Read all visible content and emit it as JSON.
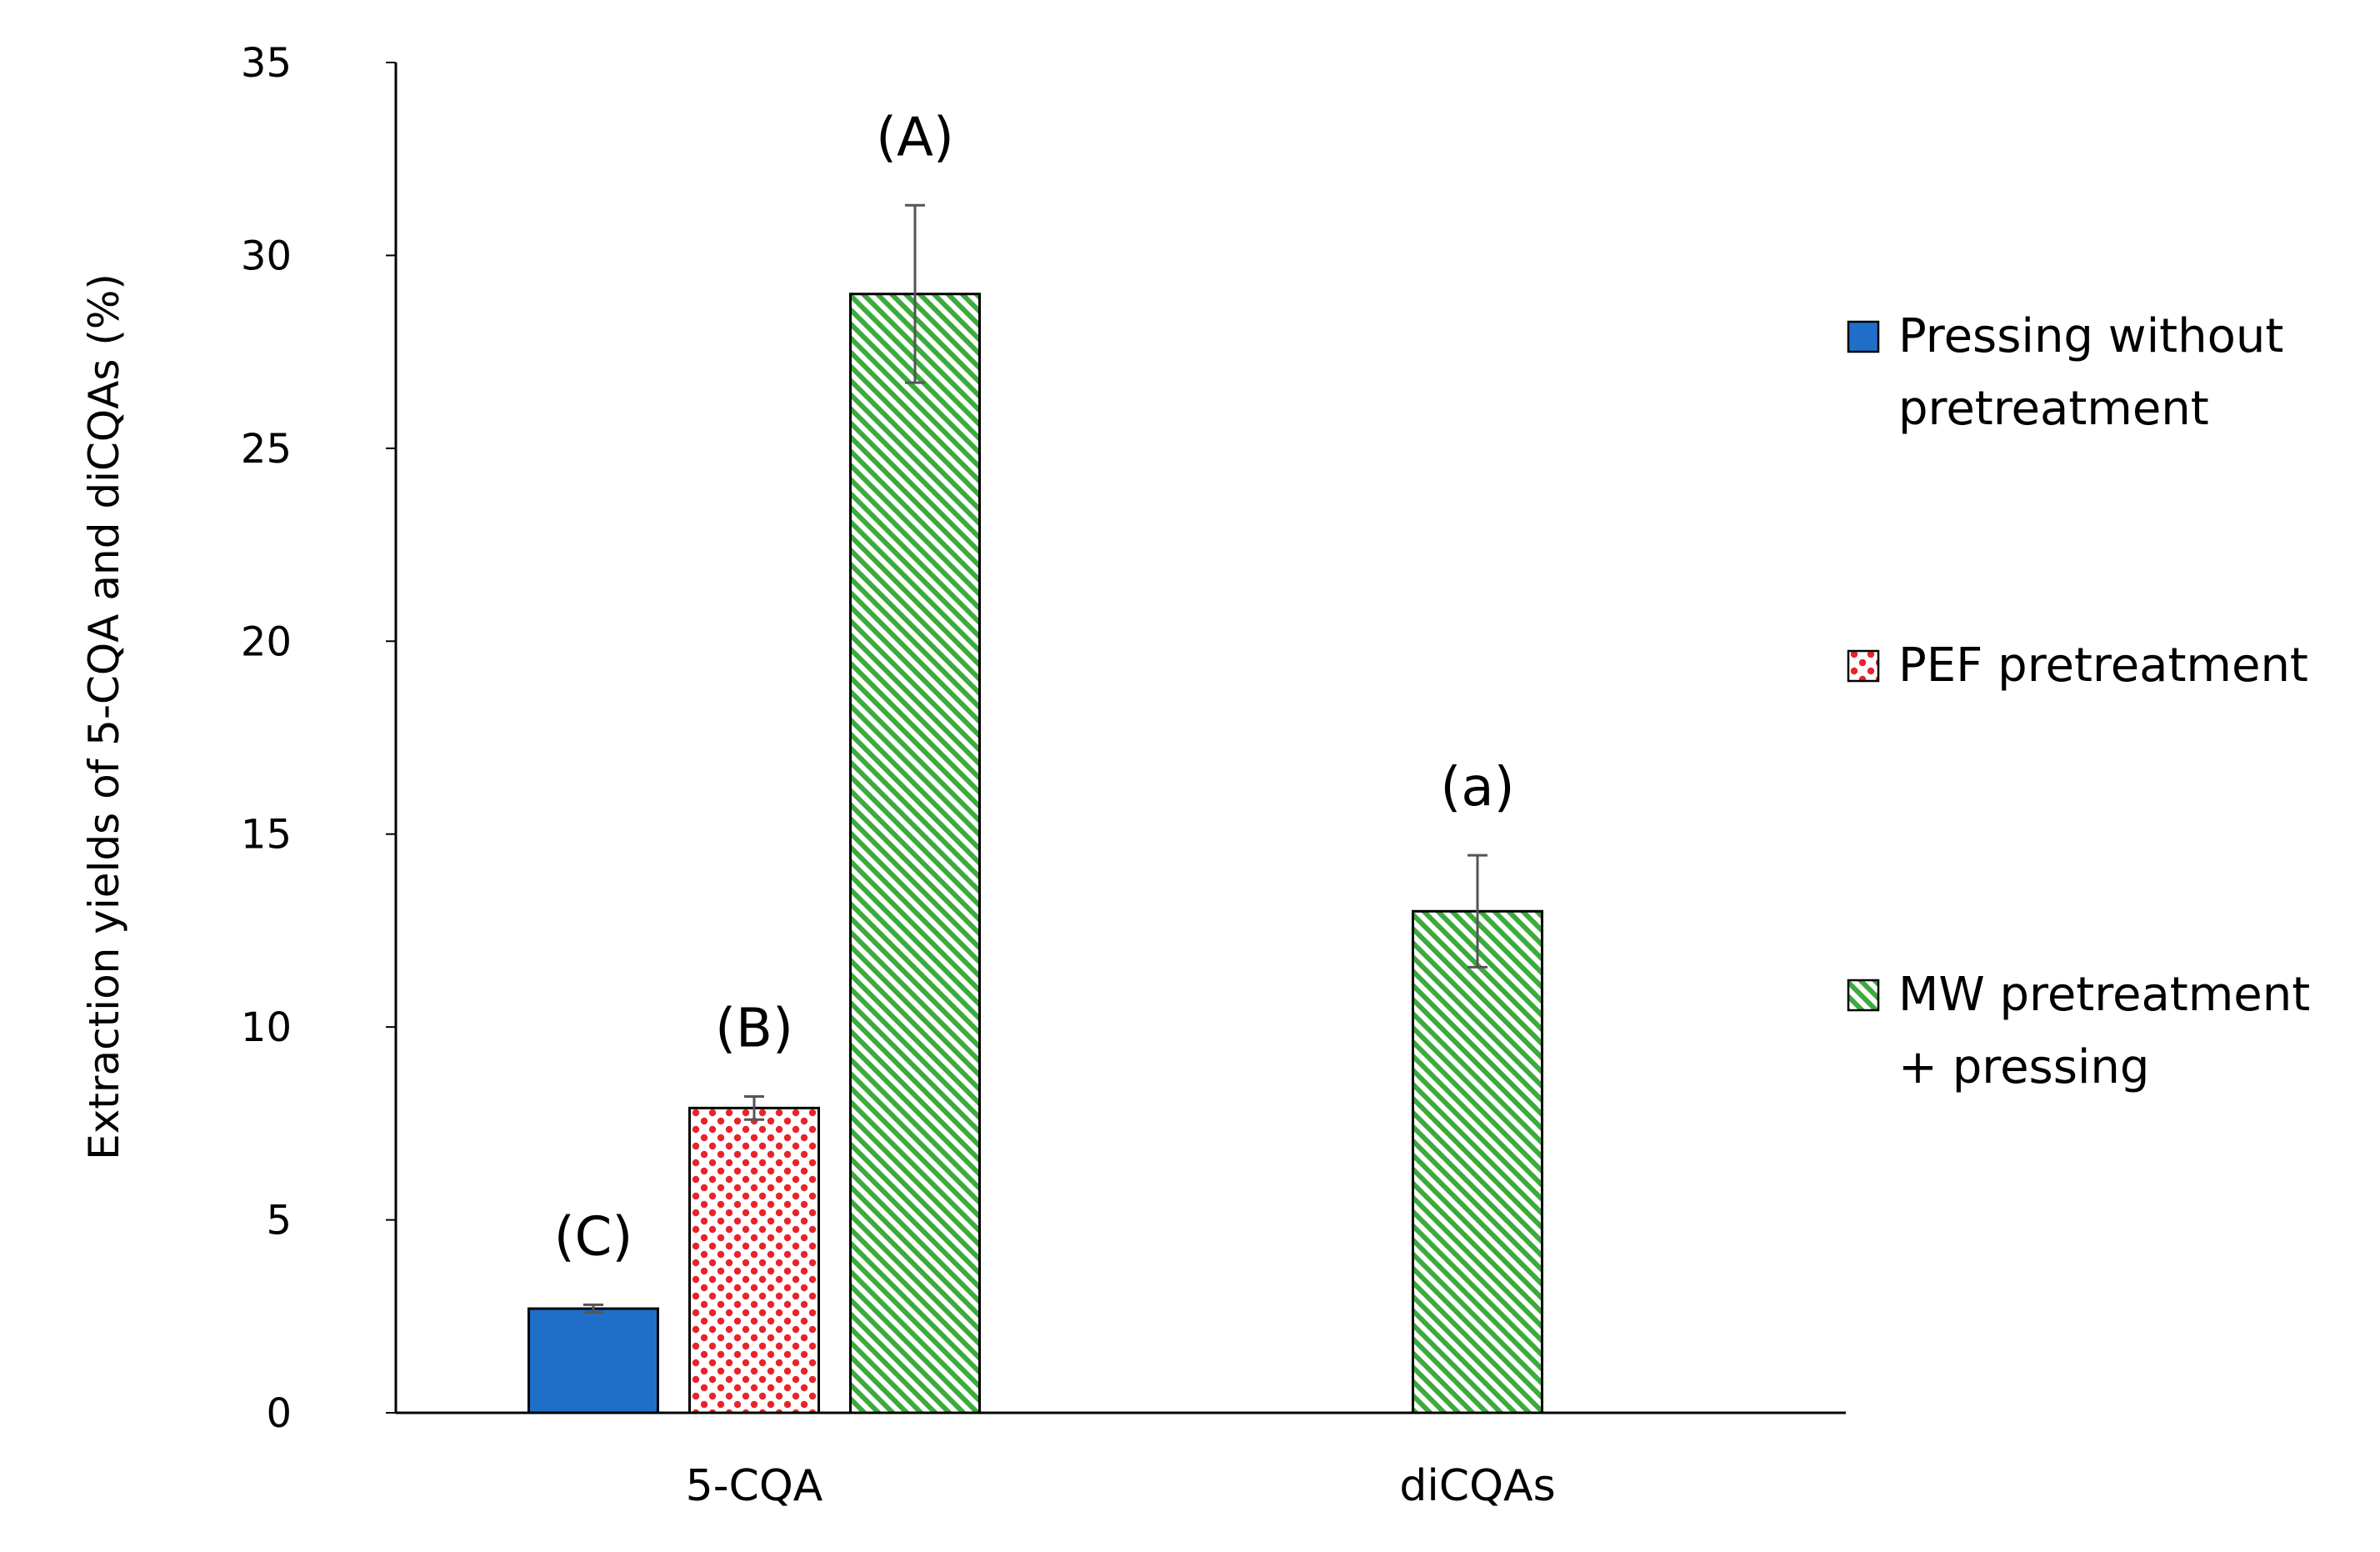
{
  "chart_data": {
    "type": "bar",
    "title": "",
    "xlabel": "",
    "ylabel": "Extraction yields of 5-CQA and diCQAs (%)",
    "ylim": [
      0,
      35
    ],
    "yticks": [
      0,
      5,
      10,
      15,
      20,
      25,
      30,
      35
    ],
    "categories": [
      "5-CQA",
      "diCQAs"
    ],
    "series": [
      {
        "name": "Pressing without pretreatment",
        "legend_lines": [
          "Pressing without",
          "pretreatment"
        ],
        "pattern": "solid",
        "color": "#1F6FC9",
        "values": [
          2.7,
          null
        ],
        "errors": [
          0.1,
          null
        ],
        "labels": [
          "(C)",
          null
        ]
      },
      {
        "name": "PEF pretreatment",
        "legend_lines": [
          "PEF pretreatment"
        ],
        "pattern": "dots",
        "color": "#E8242A",
        "values": [
          7.9,
          null
        ],
        "errors": [
          0.3,
          null
        ],
        "labels": [
          "(B)",
          null
        ]
      },
      {
        "name": "MW pretreatment + pressing",
        "legend_lines": [
          "MW pretreatment",
          "+ pressing"
        ],
        "pattern": "diagonal-stripes",
        "color": "#3DAA3D",
        "values": [
          29.0,
          13.0
        ],
        "errors": [
          2.3,
          1.45
        ],
        "labels": [
          "(A)",
          "(a)"
        ]
      }
    ],
    "legend_position": "right",
    "grid": false
  }
}
